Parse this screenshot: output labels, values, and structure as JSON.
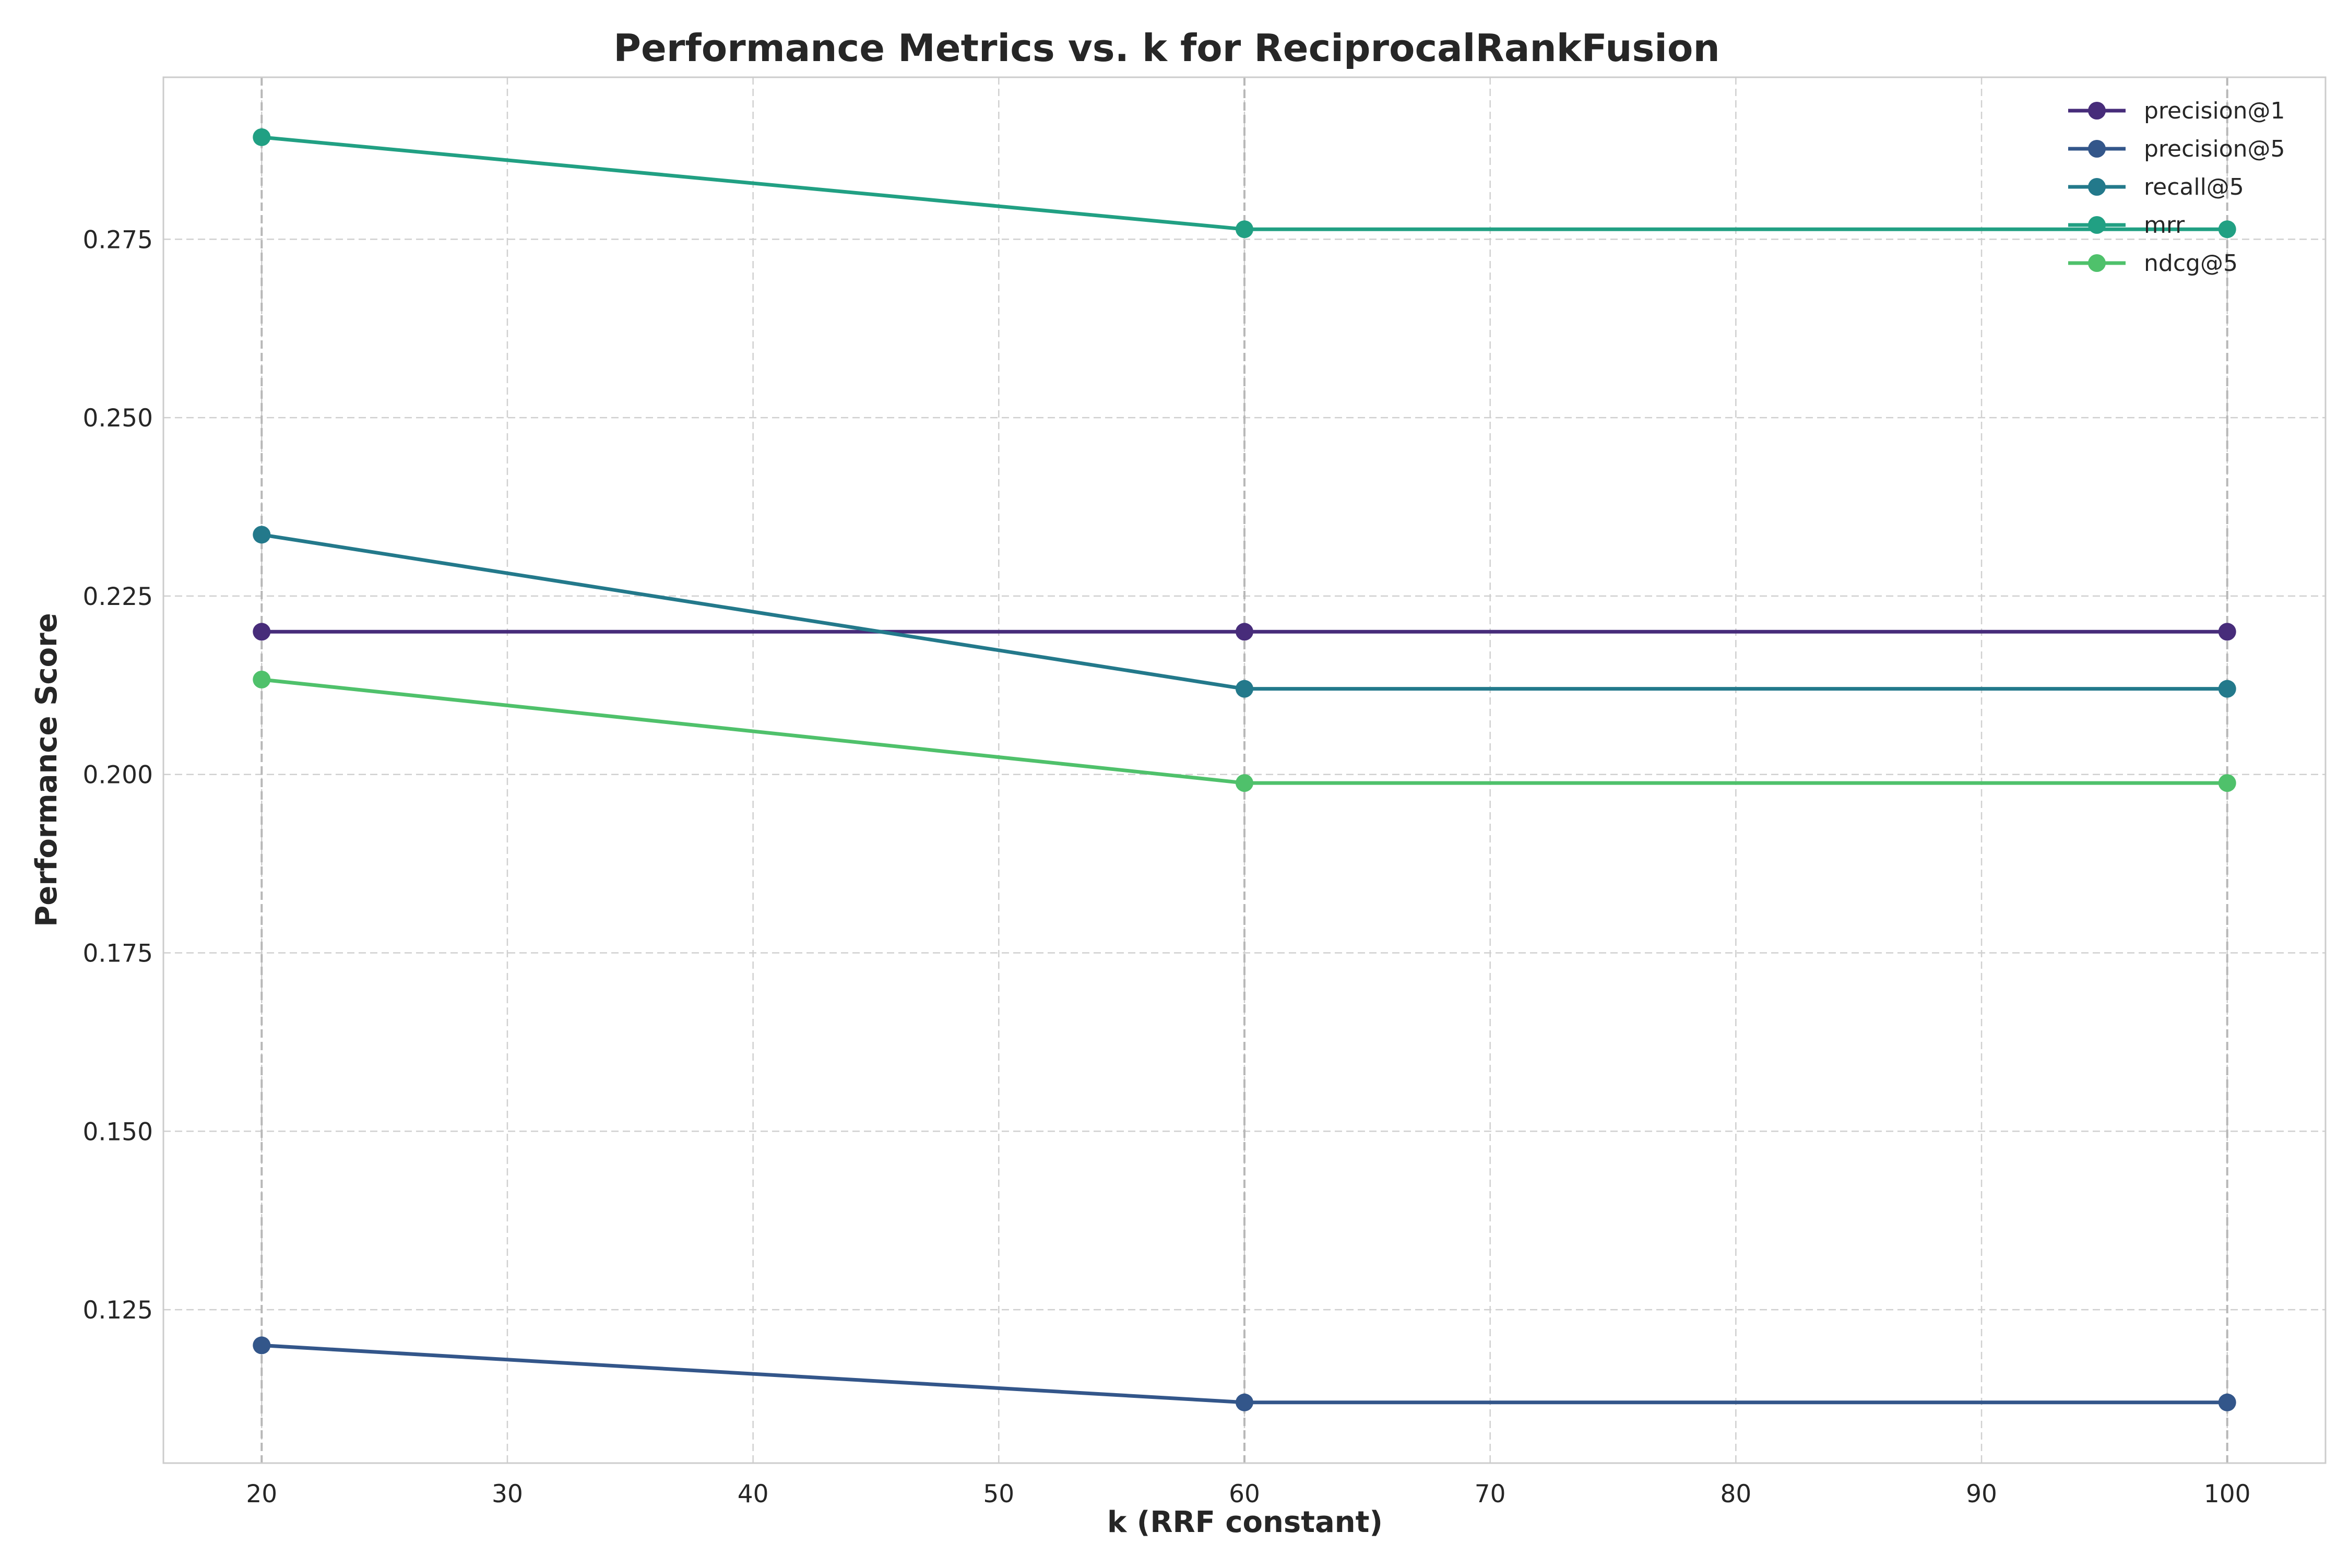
{
  "chart_data": {
    "type": "line",
    "title": "Performance Metrics vs. k for ReciprocalRankFusion",
    "xlabel": "k (RRF constant)",
    "ylabel": "Performance Score",
    "x": [
      20,
      60,
      100
    ],
    "xlim": [
      16,
      104
    ],
    "ylim": [
      0.1035,
      0.2977
    ],
    "xticks": [
      20,
      30,
      40,
      50,
      60,
      70,
      80,
      90,
      100
    ],
    "yticks": [
      0.125,
      0.15,
      0.175,
      0.2,
      0.225,
      0.25,
      0.275
    ],
    "ytick_labels": [
      "0.125",
      "0.150",
      "0.175",
      "0.200",
      "0.225",
      "0.250",
      "0.275"
    ],
    "grid": true,
    "legend_position": "top-right",
    "series": [
      {
        "name": "precision@1",
        "values": [
          0.22,
          0.22,
          0.22
        ],
        "color": "#472c7a"
      },
      {
        "name": "precision@5",
        "values": [
          0.12,
          0.112,
          0.112
        ],
        "color": "#33568a"
      },
      {
        "name": "recall@5",
        "values": [
          0.2336,
          0.212,
          0.212
        ],
        "color": "#23798b"
      },
      {
        "name": "mrr",
        "values": [
          0.2893,
          0.2764,
          0.2764
        ],
        "color": "#21a083"
      },
      {
        "name": "ndcg@5",
        "values": [
          0.2133,
          0.1988,
          0.1988
        ],
        "color": "#4fc16b"
      }
    ]
  }
}
